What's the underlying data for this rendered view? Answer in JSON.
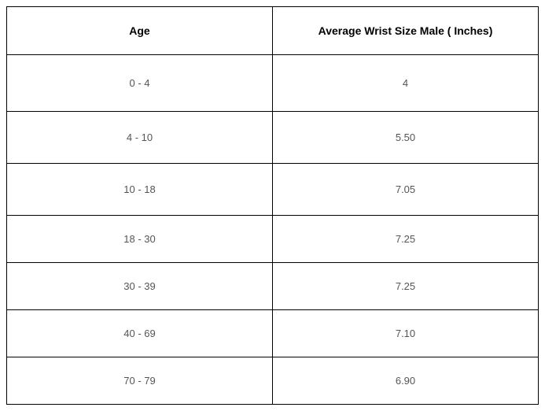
{
  "table": {
    "columns": [
      "Age",
      "Average Wrist Size Male ( Inches)"
    ],
    "rows": [
      [
        "0 - 4",
        "4"
      ],
      [
        "4 - 10",
        "5.50"
      ],
      [
        "10 - 18",
        "7.05"
      ],
      [
        "18 - 30",
        "7.25"
      ],
      [
        "30 - 39",
        "7.25"
      ],
      [
        "40 - 69",
        "7.10"
      ],
      [
        "70 - 79",
        "6.90"
      ]
    ],
    "border_color": "#000000",
    "header_text_color": "#000000",
    "body_text_color": "#555555",
    "background_color": "#ffffff",
    "header_fontsize": 14,
    "body_fontsize": 13,
    "header_fontweight": 700,
    "body_fontweight": 400
  }
}
